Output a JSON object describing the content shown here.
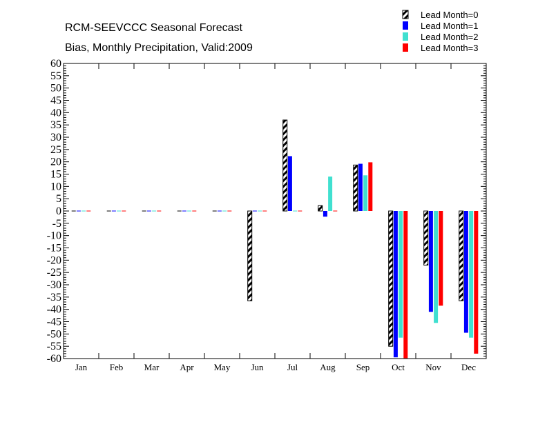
{
  "chart_data": {
    "type": "bar",
    "title": "RCM-SEEVCCC Seasonal Forecast",
    "subtitle": "Bias, Monthly Precipitation, Valid:2009",
    "xlabel": "",
    "ylabel": "",
    "ylim": [
      -60,
      60
    ],
    "ytick_step": 5,
    "grid": false,
    "legend_position": "top-right",
    "categories": [
      "Jan",
      "Feb",
      "Mar",
      "Apr",
      "May",
      "Jun",
      "Jul",
      "Aug",
      "Sep",
      "Oct",
      "Nov",
      "Dec"
    ],
    "series": [
      {
        "name": "Lead Month=0",
        "color": "#000000",
        "fill": "hatched",
        "values": [
          0,
          0,
          0,
          0,
          0,
          -36.5,
          37,
          2.2,
          18.7,
          -55,
          -22,
          -36.5
        ]
      },
      {
        "name": "Lead Month=1",
        "color": "#0000ff",
        "fill": "solid",
        "values": [
          0,
          0,
          0,
          0,
          0,
          0,
          22.3,
          -2.3,
          19.2,
          -59.5,
          -41,
          -49.5
        ]
      },
      {
        "name": "Lead Month=2",
        "color": "#40e0d0",
        "fill": "solid",
        "values": [
          0,
          0,
          0,
          0,
          0,
          0,
          0,
          14,
          14.5,
          -51.5,
          -45.5,
          -51.5
        ]
      },
      {
        "name": "Lead Month=3",
        "color": "#ff0000",
        "fill": "solid",
        "values": [
          0,
          0,
          0,
          0,
          0,
          0,
          0,
          0,
          19.8,
          -60,
          -38.5,
          -58
        ]
      }
    ]
  }
}
